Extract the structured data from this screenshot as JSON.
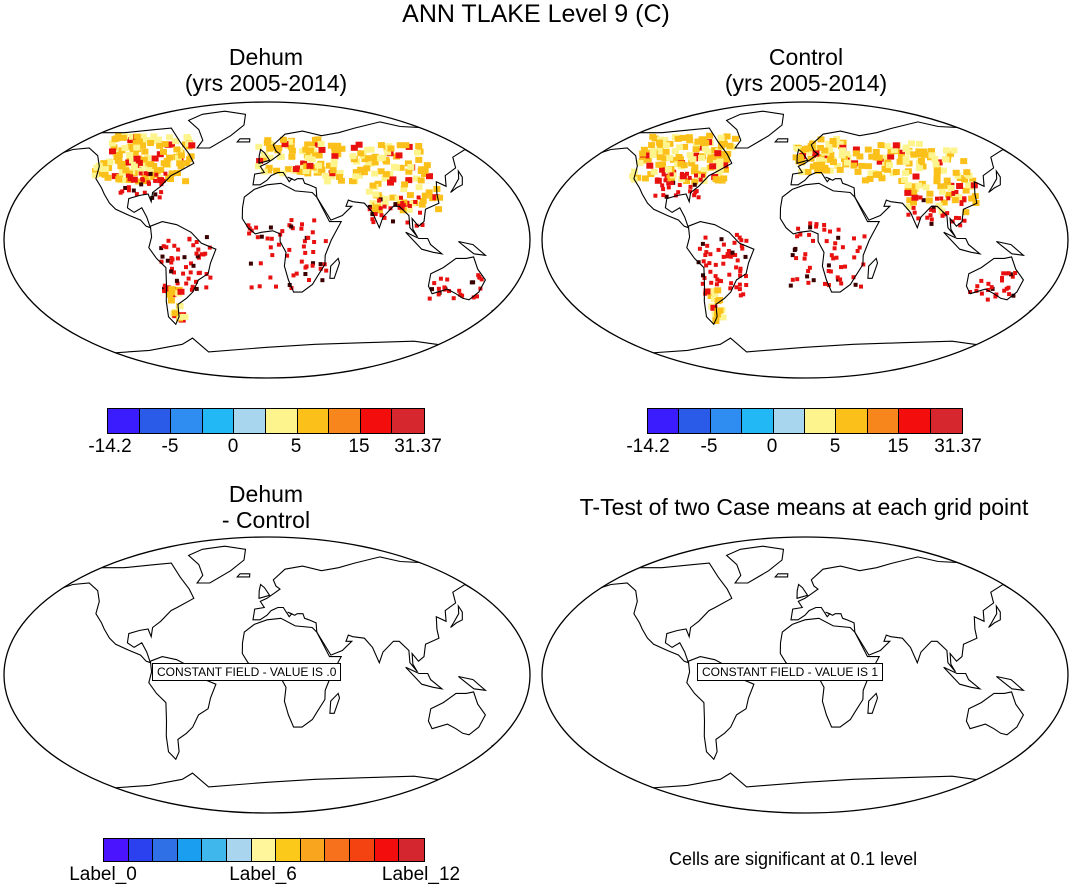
{
  "figure_title": "ANN TLAKE Level 9 (C)",
  "panels": {
    "top_left": {
      "title_line1": "Dehum",
      "title_line2": "(yrs 2005-2014)"
    },
    "top_right": {
      "title_line1": "Control",
      "title_line2": "(yrs 2005-2014)"
    },
    "bottom_left": {
      "title_line1": "Dehum",
      "title_line2": "- Control",
      "constant_field_label": "CONSTANT FIELD - VALUE IS .0"
    },
    "bottom_right": {
      "title": "T-Test of two Case means at each grid point",
      "constant_field_label": "CONSTANT FIELD - VALUE IS 1",
      "note": "Cells are significant at 0.1 level"
    }
  },
  "colorbar_top": {
    "colors": [
      "#3b1cff",
      "#2a5ae8",
      "#2f8cf0",
      "#22b7f5",
      "#a8d6ee",
      "#fdf48e",
      "#fbc019",
      "#f7871d",
      "#f30d0d",
      "#d6262e"
    ],
    "labels": [
      "-14.2",
      "-5",
      "0",
      "5",
      "15",
      "31.37"
    ]
  },
  "colorbar_bottom": {
    "colors": [
      "#4a14ff",
      "#2b40ee",
      "#3070e6",
      "#1a9ef0",
      "#3fb6ec",
      "#a9d5ee",
      "#fff59a",
      "#fbc919",
      "#f9a51d",
      "#f7711d",
      "#f54211",
      "#f30d0d",
      "#d3262e"
    ],
    "labels": [
      "Label_0",
      "Label_6",
      "Label_12"
    ]
  },
  "field_colors": {
    "land": "#ffffff",
    "warm": "#fbc019",
    "pale": "#fdf48e",
    "hot": "#e8110f",
    "dark": "#3a0000"
  }
}
